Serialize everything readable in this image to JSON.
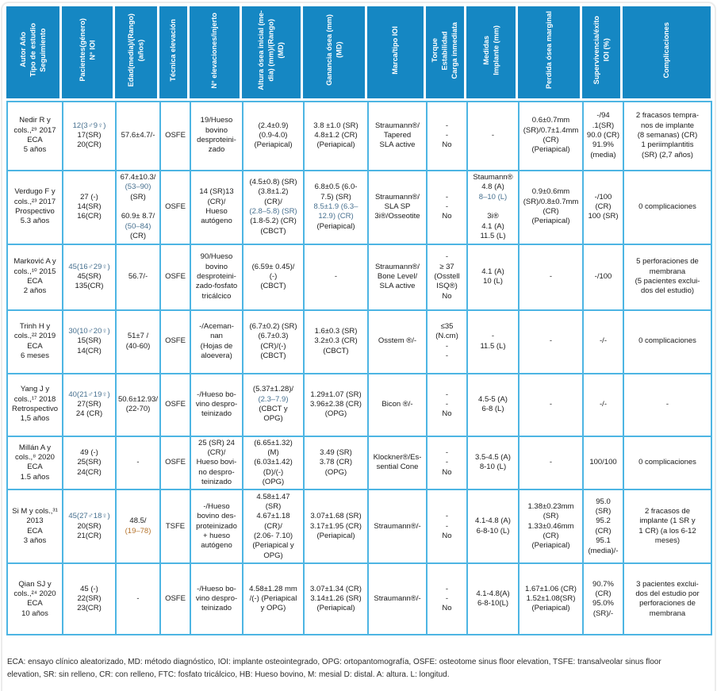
{
  "colors": {
    "header_bg": "#1587c3",
    "grid": "#4db5e3",
    "link_blue": "#47708f",
    "link_orange": "#b5742c"
  },
  "table": {
    "columns": [
      {
        "label": "Autor Año\nTipo de estudio\nSeguimiento"
      },
      {
        "label": "Pacientes(género)\nN° IOI"
      },
      {
        "label": "Edad(media)/(Rango)\n(años)"
      },
      {
        "label": "Técnica elevación"
      },
      {
        "label": "N° elevaciones/injerto"
      },
      {
        "label": "Altura ósea inicial (me-\ndia) (mm)/(Rango)\n(MD)"
      },
      {
        "label": "Ganancia ósea (mm)\n(MD)"
      },
      {
        "label": "Marca/tipo IOI"
      },
      {
        "label": "Torque\nEstabilidad\nCarga inmediata"
      },
      {
        "label": "Medidas\nImplante (mm)"
      },
      {
        "label": "Perdida ósea marginal"
      },
      {
        "label": "Supervivencia/éxito\nIOI (%)"
      },
      {
        "label": "Complicaciones"
      }
    ],
    "rows": [
      {
        "cells": [
          [
            "Nedir R y",
            "cols.,²⁹ 2017",
            "ECA",
            "5 años"
          ],
          [
            {
              "t": "12(3♂9♀)",
              "c": "blue"
            },
            "17(SR)",
            "20(CR)"
          ],
          [
            "57.6±4.7/-"
          ],
          [
            "OSFE"
          ],
          [
            "19/Hueso",
            "bovino",
            "desproteini-",
            "zado"
          ],
          [
            "(2.4±0.9)",
            "(0.9-4.0)",
            "(Periapical)"
          ],
          [
            "3.8 ±1.0 (SR)",
            "4.8±1.2 (CR)",
            "(Periapical)"
          ],
          [
            "Straumann®/",
            "Tapered",
            "SLA active"
          ],
          [
            "-",
            "-",
            "No"
          ],
          [
            "-"
          ],
          [
            "0.6±0.7mm",
            "(SR)/0.7±1.4mm",
            "(CR)",
            "(Periapical)"
          ],
          [
            "-/94",
            ".1(SR)",
            "90.0 (CR)",
            "91.9%",
            "(media)"
          ],
          [
            "2 fracasos tempra-",
            "nos de implante",
            "(8 semanas) (CR)",
            "1 periimplantitis",
            "(SR) (2,7 años)"
          ]
        ]
      },
      {
        "cells": [
          [
            "Verdugo F y",
            "cols.,²³ 2017",
            "Prospectivo",
            "5.3 años"
          ],
          [
            "27 (-)",
            "14(SR)",
            "16(CR)"
          ],
          [
            "67.4±10.3/",
            {
              "t": "(53–90)",
              "c": "blue"
            },
            "(SR)",
            "",
            "60.9± 8.7/",
            {
              "t": "(50–84)",
              "c": "blue"
            },
            "(CR)"
          ],
          [
            "OSFE"
          ],
          [
            "14 (SR)13",
            "(CR)/",
            "Hueso",
            "autógeno"
          ],
          [
            "(4.5±0.8) (SR)",
            "(3.8±1.2)",
            "(CR)/",
            {
              "t": "(2.8–5.8) (SR)",
              "c": "blue"
            },
            "(1.8-5.2) (CR)",
            "(CBCT)"
          ],
          [
            "6.8±0.5 (6.0-",
            "7.5) (SR)",
            {
              "t": "8.5±1.9 (6.3–",
              "c": "blue"
            },
            {
              "t": "12.9) (CR)",
              "c": "blue"
            },
            "(Periapical)"
          ],
          [
            "Straumann®/",
            "SLA SP",
            "3i®/Osseotite"
          ],
          [
            "-",
            "-",
            "No"
          ],
          [
            "Staumann®",
            "4.8 (A)",
            {
              "t": "8–10 (L)",
              "c": "blue"
            },
            "",
            "3i®",
            "4.1 (A)",
            "11.5 (L)"
          ],
          [
            "0.9±0.6mm",
            "(SR)/0.8±0.7mm",
            "(CR)",
            "(Periapical)"
          ],
          [
            "-/100",
            "(CR)",
            "100 (SR)"
          ],
          [
            "0 complicaciones"
          ]
        ]
      },
      {
        "cells": [
          [
            "Marković A y",
            "cols.,¹⁰ 2015",
            "ECA",
            "2 años"
          ],
          [
            {
              "t": "45(16♂29♀)",
              "c": "blue"
            },
            "45(SR)",
            "135(CR)"
          ],
          [
            "56.7/-"
          ],
          [
            "OSFE"
          ],
          [
            "90/Hueso",
            "bovino",
            "desproteini-",
            "zado-fosfato",
            "tricálcico"
          ],
          [
            "(6.59± 0.45)/",
            "(-)",
            "(CBCT)"
          ],
          [
            "-"
          ],
          [
            "Straumann®/",
            "Bone Level/",
            "SLA active"
          ],
          [
            "-",
            "≥ 37",
            "(Osstell",
            "ISQ®)",
            "No"
          ],
          [
            "4.1 (A)",
            "10 (L)"
          ],
          [
            "-"
          ],
          [
            "-/100"
          ],
          [
            "5 perforaciones de",
            "membrana",
            "(5 pacientes exclui-",
            "dos del estudio)"
          ]
        ]
      },
      {
        "cells": [
          [
            "Trinh H y",
            "cols.,²² 2019",
            "ECA",
            "6 meses"
          ],
          [
            {
              "t": "30(10♂20♀)",
              "c": "blue"
            },
            "15(SR)",
            "14(CR)"
          ],
          [
            "51±7 /",
            "(40-60)"
          ],
          [
            "OSFE"
          ],
          [
            "-/Aceman-",
            "nan",
            "(Hojas de",
            "aloevera)"
          ],
          [
            "(6.7±0.2) (SR)",
            "(6.7±0.3)",
            "(CR)/(-)",
            "(CBCT)"
          ],
          [
            "1.6±0.3 (SR)",
            "3.2±0.3 (CR)",
            "(CBCT)"
          ],
          [
            "Osstem ®/-"
          ],
          [
            "≤35",
            "(N.cm)",
            "-",
            "-"
          ],
          [
            "-",
            "11.5 (L)"
          ],
          [
            "-"
          ],
          [
            "-/-"
          ],
          [
            "0 complicaciones"
          ]
        ]
      },
      {
        "cells": [
          [
            "Yang J y",
            "cols.,¹⁷ 2018",
            "Retrospectivo",
            "1,5 años"
          ],
          [
            {
              "t": "40(21♂19♀)",
              "c": "blue"
            },
            "27(SR)",
            "24 (CR)"
          ],
          [
            "50.6±12.93/",
            "(22-70)"
          ],
          [
            "OSFE"
          ],
          [
            "-/Hueso bo-",
            "vino despro-",
            "teinizado"
          ],
          [
            "(5.37±1.28)/",
            {
              "t": "(2.3–7.9)",
              "c": "blue"
            },
            "(CBCT y",
            "OPG)"
          ],
          [
            "1.29±1.07 (SR)",
            "3.96±2.38 (CR)",
            "(OPG)"
          ],
          [
            "Bicon ®/-"
          ],
          [
            "-",
            "-",
            "No"
          ],
          [
            "4.5-5 (A)",
            "6-8 (L)"
          ],
          [
            "-"
          ],
          [
            "-/-"
          ],
          [
            "-"
          ]
        ]
      },
      {
        "cells": [
          [
            "Millán A y",
            "cols.,⁸ 2020",
            "ECA",
            "1.5 años"
          ],
          [
            "49 (-)",
            "25(SR)",
            "24(CR)"
          ],
          [
            "-"
          ],
          [
            "OSFE"
          ],
          [
            "25 (SR) 24",
            "(CR)/",
            "Hueso bovi-",
            "no despro-",
            "teinizado"
          ],
          [
            "(6.65±1.32)",
            "(M)",
            "(6.03±1.42)",
            "(D)/(-)",
            "(OPG)"
          ],
          [
            "3.49 (SR)",
            "3.78 (CR)",
            "(OPG)"
          ],
          [
            "Klockner®/Es-",
            "sential Cone"
          ],
          [
            "-",
            "-",
            "No"
          ],
          [
            "3.5-4.5 (A)",
            "8-10 (L)"
          ],
          [
            "-"
          ],
          [
            "100/100"
          ],
          [
            "0 complicaciones"
          ]
        ]
      },
      {
        "cells": [
          [
            "Si M y cols.,³¹",
            "2013",
            "ECA",
            "3 años"
          ],
          [
            {
              "t": "45(27♂18♀)",
              "c": "blue"
            },
            "20(SR)",
            "21(CR)"
          ],
          [
            "48.5/",
            {
              "t": "(19–78)",
              "c": "orange"
            }
          ],
          [
            "TSFE"
          ],
          [
            "-/Hueso",
            "bovino des-",
            "proteinizado",
            "+ hueso",
            "autógeno"
          ],
          [
            "4.58±1.47",
            "(SR)",
            "4.67±1.18",
            "(CR)/",
            "(2.06- 7.10)",
            "(Periapical y",
            "OPG)"
          ],
          [
            "3.07±1.68 (SR)",
            "3.17±1.95 (CR)",
            "(Periapical)"
          ],
          [
            "Straumann®/-"
          ],
          [
            "-",
            "-",
            "No"
          ],
          [
            "4.1-4.8 (A)",
            "6-8-10 (L)"
          ],
          [
            "1.38±0.23mm",
            "(SR)",
            "1.33±0.46mm",
            "(CR)",
            "(Periapical)"
          ],
          [
            "95.0",
            "(SR)",
            "95.2",
            "(CR)",
            "95.1",
            "(media)/-"
          ],
          [
            "2 fracasos de",
            "implante (1 SR y",
            "1 CR) (a los 6-12",
            "meses)"
          ]
        ]
      },
      {
        "cells": [
          [
            "Qian SJ y",
            "cols.,²⁴ 2020",
            "ECA",
            "10 años"
          ],
          [
            "45 (-)",
            "22(SR)",
            "23(CR)"
          ],
          [
            "-"
          ],
          [
            "OSFE"
          ],
          [
            "-/Hueso bo-",
            "vino despro-",
            "teinizado"
          ],
          [
            "4.58±1.28 mm",
            "/(-) (Periapical",
            "y OPG)"
          ],
          [
            "3.07±1.34 (CR)",
            "3.14±1.26 (SR)",
            "(Periapical)"
          ],
          [
            "Straumann®/-"
          ],
          [
            "-",
            "-",
            "No"
          ],
          [
            "4.1-4.8(A)",
            "6-8-10(L)"
          ],
          [
            "1.67±1.06 (CR)",
            "1.52±1.08(SR)",
            "(Periapical)"
          ],
          [
            "90.7%",
            "(CR)",
            "95.0%",
            "(SR)/-"
          ],
          [
            "3 pacientes exclui-",
            "dos del estudio por",
            "perforaciones de",
            "membrana"
          ]
        ]
      }
    ]
  },
  "footnote": "ECA: ensayo clínico aleatorizado, MD: método diagnóstico, IOI: implante osteointegrado, OPG: ortopantomografía, OSFE: osteotome sinus floor elevation, TSFE: transalveolar sinus floor elevation, SR: sin relleno, CR: con relleno, FTC: fosfato tricálcico, HB: Hueso bovino, M: mesial D: distal. A: altura. L: longitud."
}
